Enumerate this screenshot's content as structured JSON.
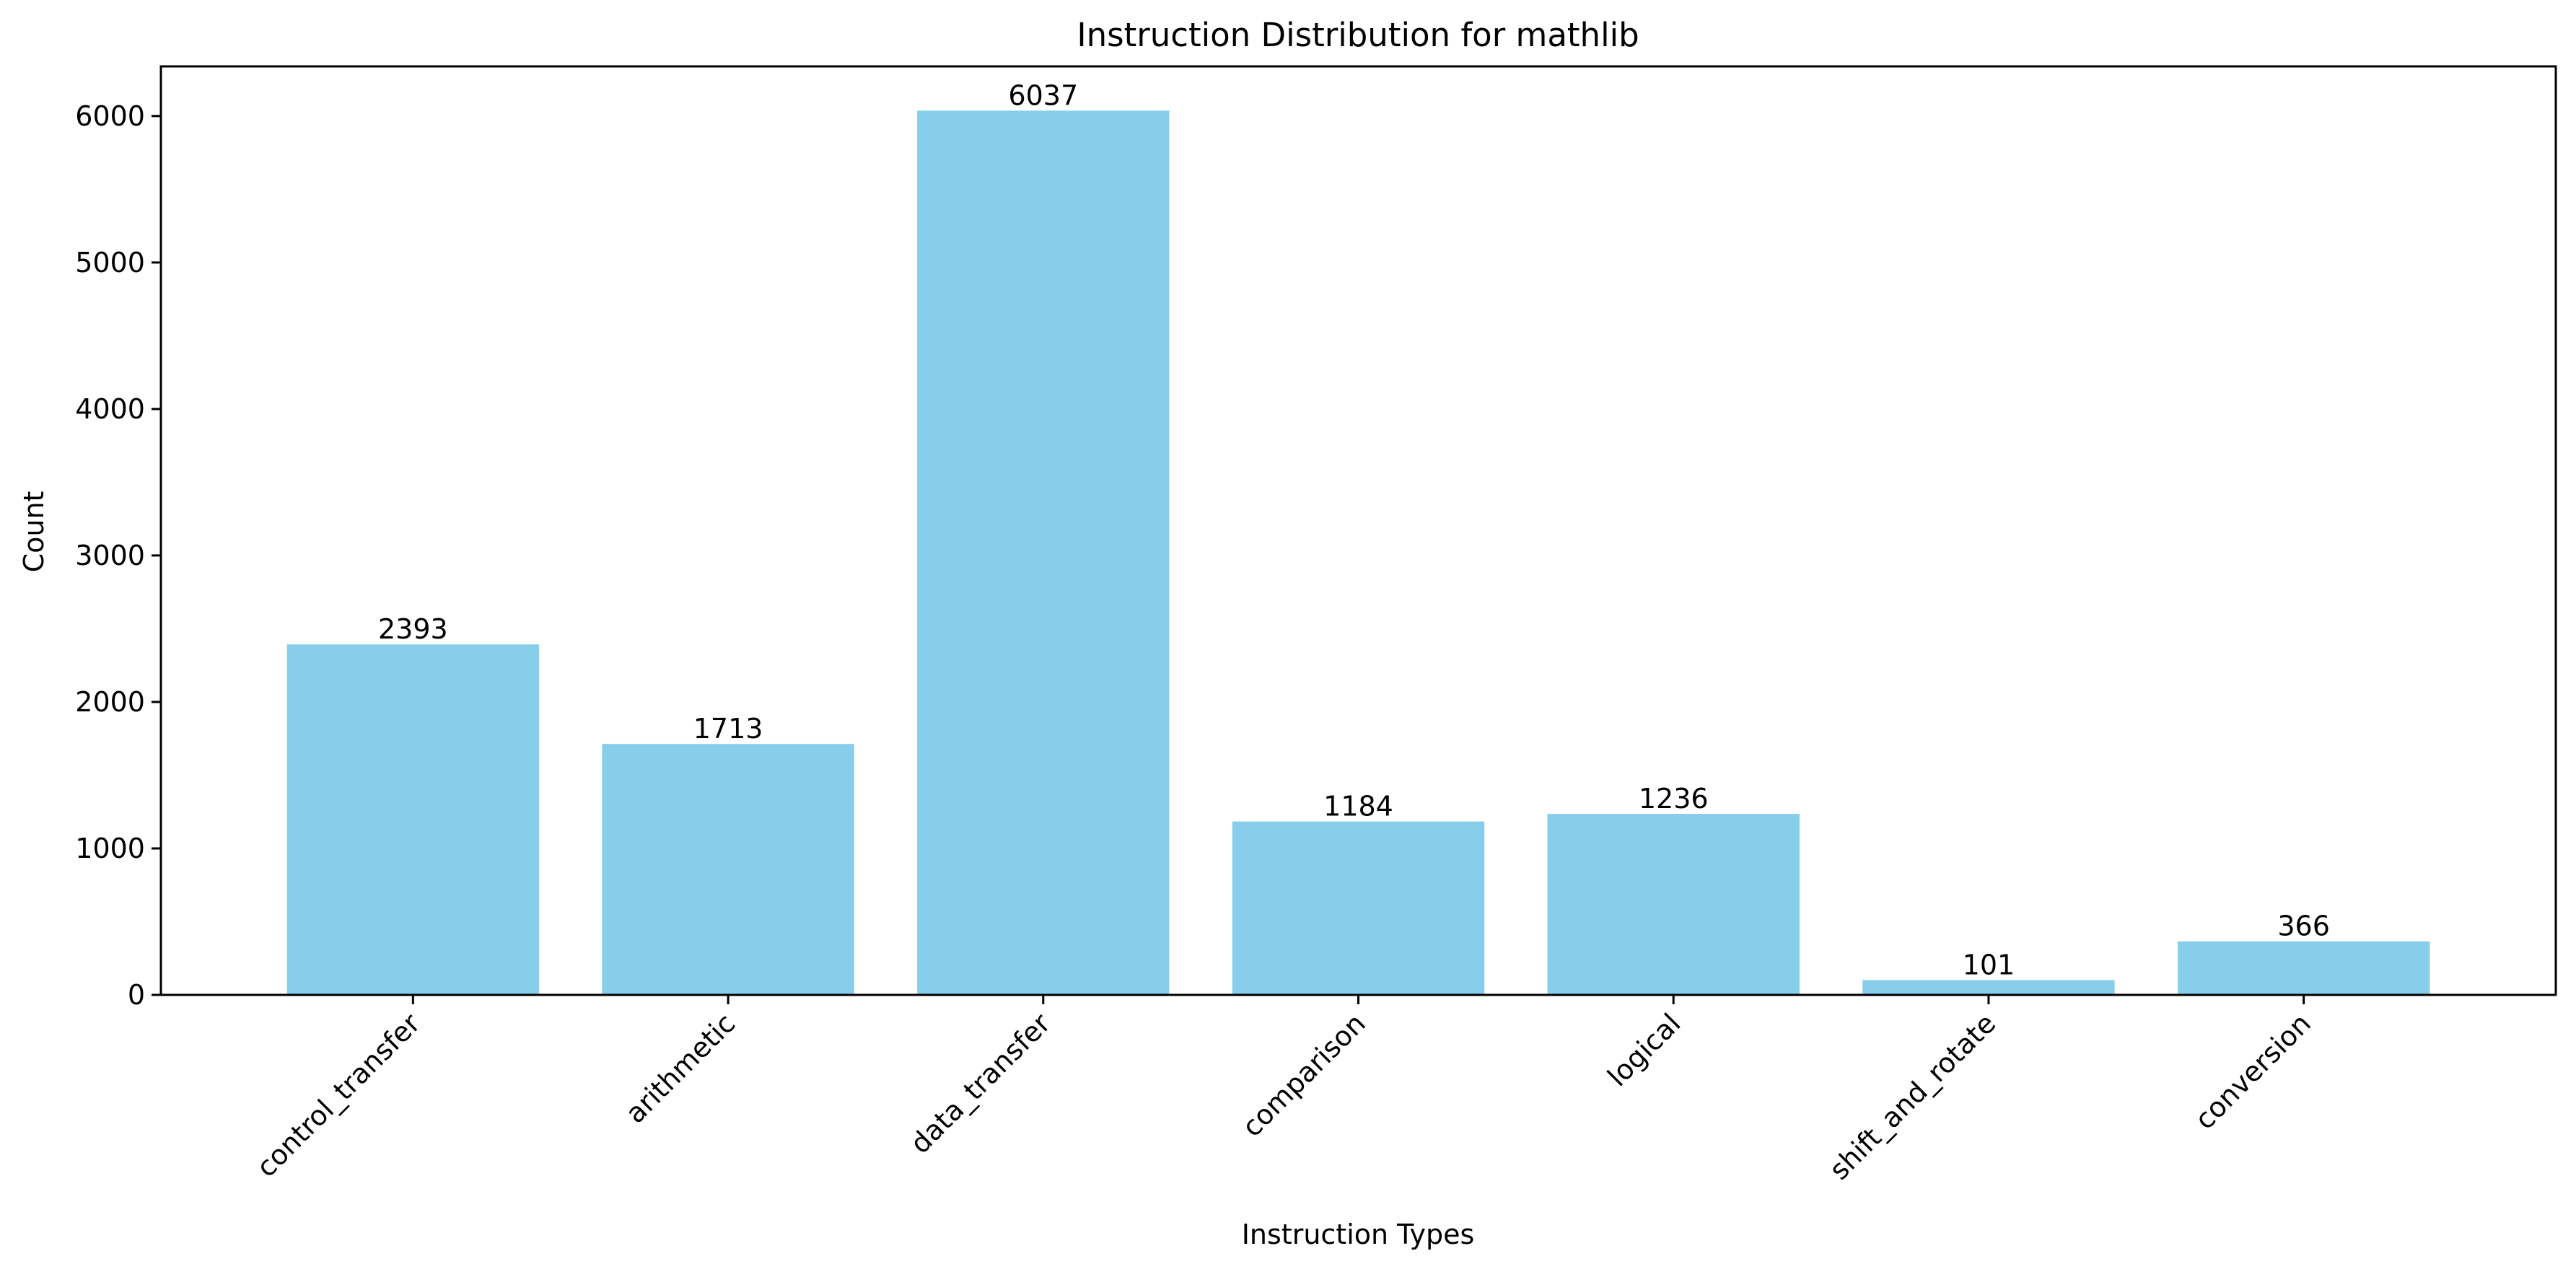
{
  "chart_data": {
    "type": "bar",
    "title": "Instruction Distribution for mathlib",
    "xlabel": "Instruction Types",
    "ylabel": "Count",
    "categories": [
      "control_transfer",
      "arithmetic",
      "data_transfer",
      "comparison",
      "logical",
      "shift_and_rotate",
      "conversion"
    ],
    "values": [
      2393,
      1713,
      6037,
      1184,
      1236,
      101,
      366
    ],
    "data_labels": [
      "2393",
      "1713",
      "6037",
      "1184",
      "1236",
      "101",
      "366"
    ],
    "yticks": [
      0,
      1000,
      2000,
      3000,
      4000,
      5000,
      6000
    ],
    "ytick_labels": [
      "0",
      "1000",
      "2000",
      "3000",
      "4000",
      "5000",
      "6000"
    ],
    "ylim": [
      0,
      6339
    ],
    "bar_color": "#87ceeb",
    "grid": false,
    "legend": "none"
  }
}
